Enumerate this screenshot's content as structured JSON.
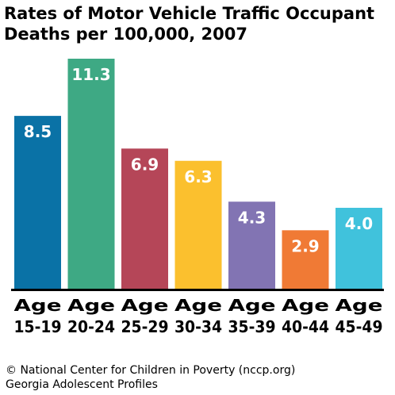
{
  "title_lines": [
    "Rates of Motor Vehicle Traffic Occupant",
    "Deaths per 100,000, 2007"
  ],
  "footer_lines": [
    "© National Center for Children in Poverty (nccp.org)",
    "Georgia Adolescent Profiles"
  ],
  "chart_data": {
    "type": "bar",
    "title": "Rates of Motor Vehicle Traffic Occupant Deaths per 100,000, 2007",
    "category_labels": [
      [
        "Age",
        "15-19"
      ],
      [
        "Age",
        "20-24"
      ],
      [
        "Age",
        "25-29"
      ],
      [
        "Age",
        "30-34"
      ],
      [
        "Age",
        "35-39"
      ],
      [
        "Age",
        "40-44"
      ],
      [
        "Age",
        "45-49"
      ]
    ],
    "categories": [
      "Age 15-19",
      "Age 20-24",
      "Age 25-29",
      "Age 30-34",
      "Age 35-39",
      "Age 40-44",
      "Age 45-49"
    ],
    "values": [
      8.5,
      11.3,
      6.9,
      6.3,
      4.3,
      2.9,
      4.0
    ],
    "value_labels": [
      "8.5",
      "11.3",
      "6.9",
      "6.3",
      "4.3",
      "2.9",
      "4.0"
    ],
    "colors": [
      "#0a72a6",
      "#3ea984",
      "#b54658",
      "#fbc02e",
      "#8274b3",
      "#f07a35",
      "#40c2dc"
    ],
    "ylim": [
      0,
      11.3
    ],
    "grid": false,
    "legend": "none",
    "xlabel": "",
    "ylabel": ""
  }
}
